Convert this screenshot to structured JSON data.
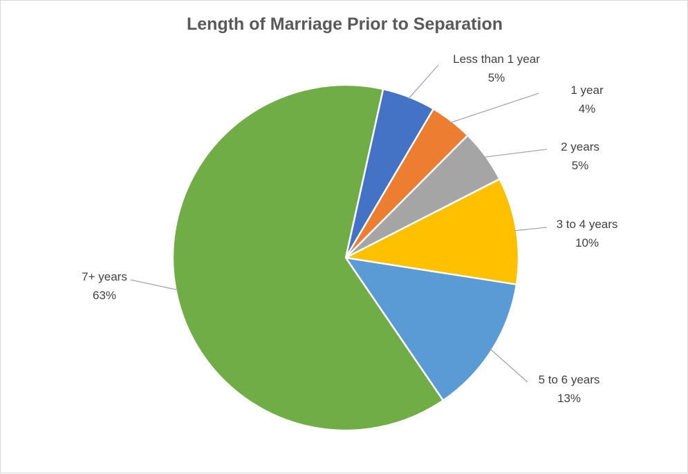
{
  "chart_data": {
    "type": "pie",
    "title": "Length of Marriage Prior to Separation",
    "slices": [
      {
        "label": "Less than 1 year",
        "value": 5,
        "display": "5%",
        "color": "#4472C4"
      },
      {
        "label": "1 year",
        "value": 4,
        "display": "4%",
        "color": "#ED7D31"
      },
      {
        "label": "2 years",
        "value": 5,
        "display": "5%",
        "color": "#A5A5A5"
      },
      {
        "label": "3 to 4 years",
        "value": 10,
        "display": "10%",
        "color": "#FFC000"
      },
      {
        "label": "5 to 6 years",
        "value": 13,
        "display": "13%",
        "color": "#5B9BD5"
      },
      {
        "label": "7+ years",
        "value": 63,
        "display": "63%",
        "color": "#70AD47"
      }
    ],
    "legend": "none",
    "data_labels": "outside with leader lines",
    "start_angle_deg": 12.5,
    "slice_border_color": "#ffffff",
    "leader_line_color": "#a6a6a6"
  }
}
